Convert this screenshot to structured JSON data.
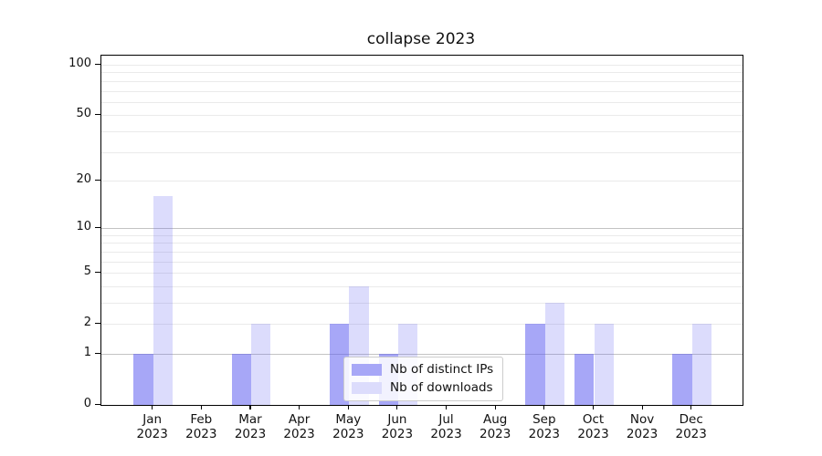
{
  "chart_data": {
    "type": "bar",
    "title": "collapse 2023",
    "categories": [
      "Jan",
      "Feb",
      "Mar",
      "Apr",
      "May",
      "Jun",
      "Jul",
      "Aug",
      "Sep",
      "Oct",
      "Nov",
      "Dec"
    ],
    "year": "2023",
    "series": [
      {
        "name": "Nb of distinct IPs",
        "values": [
          1,
          0,
          1,
          0,
          2,
          1,
          0,
          0,
          2,
          1,
          0,
          1
        ],
        "color": "rgba(95,95,240,0.55)",
        "swatch": "#a7a7f7"
      },
      {
        "name": "Nb of downloads",
        "values": [
          16,
          0,
          2,
          0,
          4,
          2,
          0,
          0,
          3,
          2,
          0,
          2
        ],
        "color": "rgba(95,95,240,0.22)",
        "swatch": "#dcdcfc"
      }
    ],
    "yscale": "log1p",
    "ylim": [
      0,
      113
    ],
    "y_ticks": [
      0,
      1,
      2,
      5,
      10,
      20,
      50,
      100
    ],
    "y_major_gridlines": [
      1,
      10
    ],
    "y_minor_gridlines": [
      2,
      3,
      4,
      5,
      6,
      7,
      8,
      9,
      20,
      30,
      40,
      50,
      60,
      70,
      80,
      90,
      100
    ],
    "grid": true,
    "legend_position": "lower center"
  },
  "colors": {
    "major_grid": "#c3c3c3",
    "minor_grid": "#eaeaea",
    "axis": "#000000",
    "text": "#111111",
    "legend_border": "#cccccc"
  }
}
